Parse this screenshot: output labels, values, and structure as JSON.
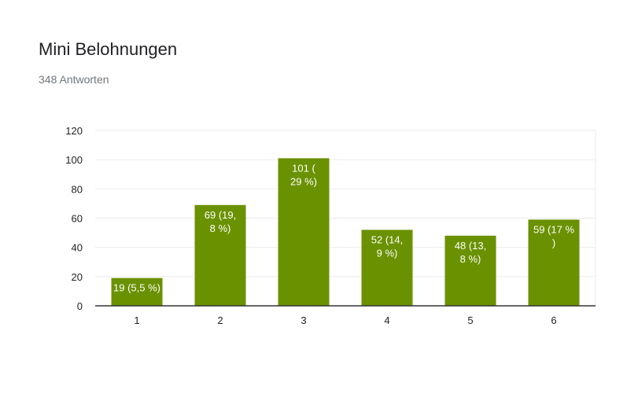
{
  "header": {
    "title": "Mini Belohnungen",
    "subtitle": "348 Antworten"
  },
  "colors": {
    "bar": "#6a9100",
    "grid": "#ebebeb",
    "axis": "#333333",
    "label_inside": "#ffffff",
    "label_outside": "#222222",
    "leader": "#999999"
  },
  "chart_data": {
    "type": "bar",
    "title": "Mini Belohnungen",
    "categories": [
      "1",
      "2",
      "3",
      "4",
      "5",
      "6"
    ],
    "values": [
      19,
      69,
      101,
      52,
      48,
      59
    ],
    "data_labels": [
      [
        "19 (5,5 %)"
      ],
      [
        "69 (19,",
        "8 %)"
      ],
      [
        "101 (",
        "29 %)"
      ],
      [
        "52 (14,",
        "9 %)"
      ],
      [
        "48 (13,",
        "8 %)"
      ],
      [
        "59 (17 %",
        ")"
      ]
    ],
    "yticks": [
      0,
      20,
      40,
      60,
      80,
      100,
      120
    ],
    "ylim": [
      0,
      120
    ],
    "xlabel": "",
    "ylabel": "",
    "grid": true,
    "legend": "none"
  }
}
